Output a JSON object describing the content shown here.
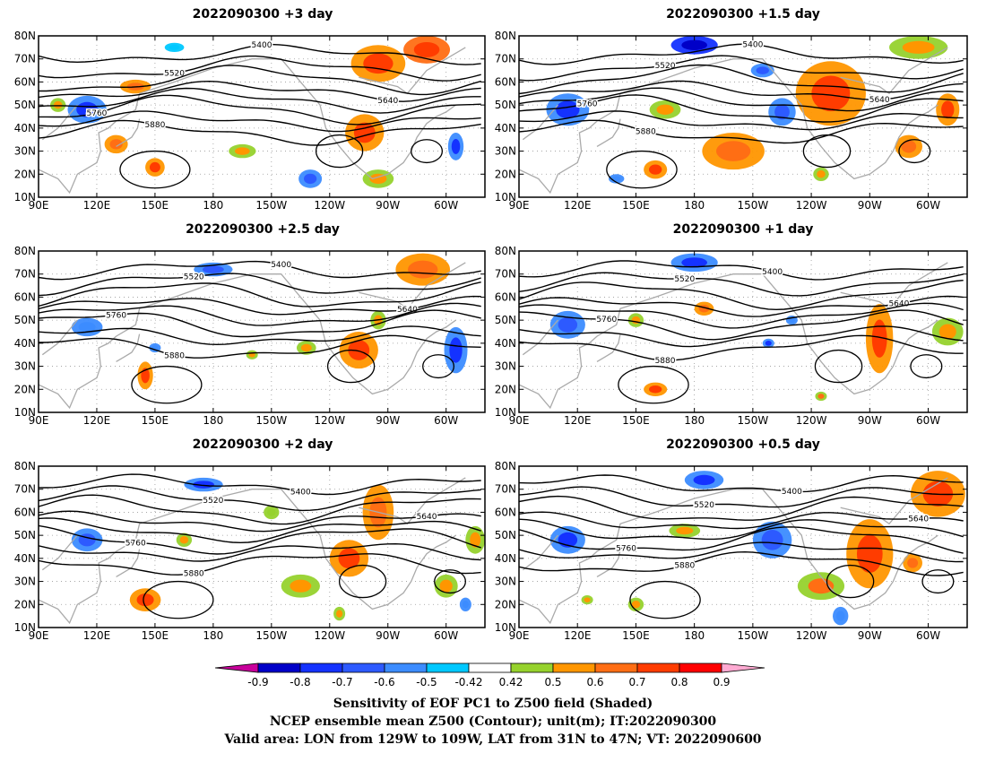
{
  "panels": [
    {
      "id": "p1",
      "title": "2022090300  +3 day"
    },
    {
      "id": "p2",
      "title": "2022090300  +1.5 day"
    },
    {
      "id": "p3",
      "title": "2022090300  +2.5 day"
    },
    {
      "id": "p4",
      "title": "2022090300  +1 day"
    },
    {
      "id": "p5",
      "title": "2022090300  +2 day"
    },
    {
      "id": "p6",
      "title": "2022090300  +0.5 day"
    }
  ],
  "axes": {
    "lon_labels": [
      "90E",
      "120E",
      "150E",
      "180",
      "150W",
      "120W",
      "90W",
      "60W"
    ],
    "lon_values": [
      90,
      120,
      150,
      180,
      210,
      240,
      270,
      300
    ],
    "lon_range": [
      90,
      320
    ],
    "lat_labels": [
      "10N",
      "20N",
      "30N",
      "40N",
      "50N",
      "60N",
      "70N",
      "80N"
    ],
    "lat_values": [
      10,
      20,
      30,
      40,
      50,
      60,
      70,
      80
    ],
    "lat_range": [
      10,
      80
    ]
  },
  "contour_values": [
    "5400",
    "5520",
    "5640",
    "5760",
    "5880"
  ],
  "colorbar": {
    "labels": [
      "-0.9",
      "-0.8",
      "-0.7",
      "-0.6",
      "-0.5",
      "-0.42",
      "0.42",
      "0.5",
      "0.6",
      "0.7",
      "0.8",
      "0.9"
    ],
    "colors": [
      "#0000c8",
      "#1432ff",
      "#2d5aff",
      "#3c8cff",
      "#00c8ff",
      "#ffffff",
      "#96d22d",
      "#ff9600",
      "#ff6e14",
      "#ff3c00",
      "#ff0000"
    ],
    "low_end_color": "#c8009b",
    "high_end_color": "#ffaad2"
  },
  "captions": {
    "line1": "Sensitivity of EOF PC1 to Z500 field (Shaded)",
    "line2": "NCEP ensemble mean Z500 (Contour); unit(m); IT:2022090300",
    "line3": "Valid area: LON from 129W to 109W, LAT from 31N to 47N; VT: 2022090600"
  }
}
